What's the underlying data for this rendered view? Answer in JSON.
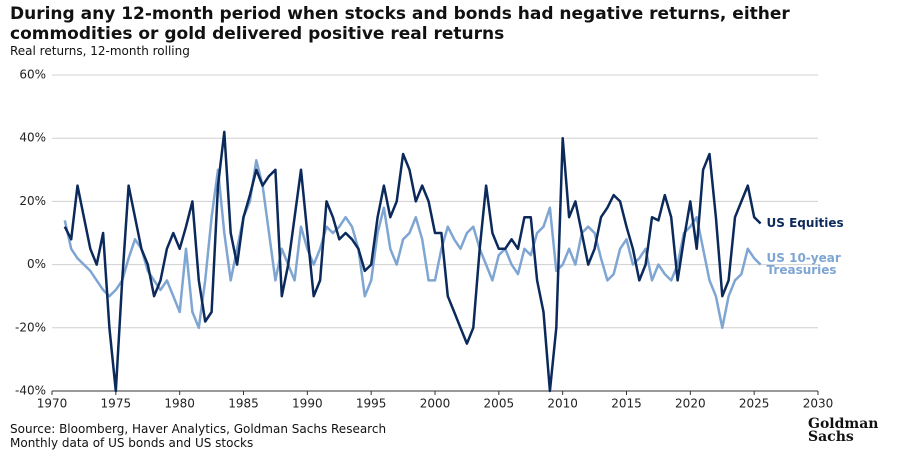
{
  "chart_data": {
    "type": "line",
    "title": "During any 12-month period when stocks and bonds had negative returns, either commodities or gold delivered positive real returns",
    "subtitle": "Real returns, 12-month rolling",
    "source": "Source: Bloomberg, Haver Analytics, Goldman Sachs Research",
    "note": "Monthly data of US bonds and US stocks",
    "logo": [
      "Goldman",
      "Sachs"
    ],
    "x": [
      1971,
      1971.5,
      1972,
      1972.5,
      1973,
      1973.5,
      1974,
      1974.5,
      1975,
      1975.5,
      1976,
      1976.5,
      1977,
      1977.5,
      1978,
      1978.5,
      1979,
      1979.5,
      1980,
      1980.5,
      1981,
      1981.5,
      1982,
      1982.5,
      1983,
      1983.5,
      1984,
      1984.5,
      1985,
      1985.5,
      1986,
      1986.5,
      1987,
      1987.5,
      1988,
      1988.5,
      1989,
      1989.5,
      1990,
      1990.5,
      1991,
      1991.5,
      1992,
      1992.5,
      1993,
      1993.5,
      1994,
      1994.5,
      1995,
      1995.5,
      1996,
      1996.5,
      1997,
      1997.5,
      1998,
      1998.5,
      1999,
      1999.5,
      2000,
      2000.5,
      2001,
      2001.5,
      2002,
      2002.5,
      2003,
      2003.5,
      2004,
      2004.5,
      2005,
      2005.5,
      2006,
      2006.5,
      2007,
      2007.5,
      2008,
      2008.5,
      2009,
      2009.5,
      2010,
      2010.5,
      2011,
      2011.5,
      2012,
      2012.5,
      2013,
      2013.5,
      2014,
      2014.5,
      2015,
      2015.5,
      2016,
      2016.5,
      2017,
      2017.5,
      2018,
      2018.5,
      2019,
      2019.5,
      2020,
      2020.5,
      2021,
      2021.5,
      2022,
      2022.5,
      2023,
      2023.5,
      2024,
      2024.5,
      2025,
      2025.5
    ],
    "series": [
      {
        "name": "US Equities",
        "color": "#0b2a5b",
        "values": [
          12,
          8,
          25,
          15,
          5,
          0,
          10,
          -20,
          -40,
          -5,
          25,
          15,
          5,
          0,
          -10,
          -5,
          5,
          10,
          5,
          12,
          20,
          -5,
          -18,
          -15,
          25,
          42,
          10,
          0,
          15,
          22,
          30,
          25,
          28,
          30,
          -10,
          0,
          15,
          30,
          10,
          -10,
          -5,
          20,
          15,
          8,
          10,
          8,
          5,
          -2,
          0,
          15,
          25,
          15,
          20,
          35,
          30,
          20,
          25,
          20,
          10,
          10,
          -10,
          -15,
          -20,
          -25,
          -20,
          5,
          25,
          10,
          5,
          5,
          8,
          5,
          15,
          15,
          -5,
          -15,
          -40,
          -20,
          40,
          15,
          20,
          10,
          0,
          5,
          15,
          18,
          22,
          20,
          12,
          5,
          -5,
          0,
          15,
          14,
          22,
          15,
          -5,
          8,
          20,
          5,
          30,
          35,
          15,
          -10,
          -5,
          15,
          20,
          25,
          15,
          13
        ]
      },
      {
        "name": "US 10-year Treasuries",
        "color": "#7fa5d3",
        "values": [
          14,
          5,
          2,
          0,
          -2,
          -5,
          -8,
          -10,
          -8,
          -5,
          2,
          8,
          5,
          -2,
          -5,
          -8,
          -5,
          -10,
          -15,
          5,
          -15,
          -20,
          -5,
          15,
          30,
          10,
          -5,
          5,
          15,
          20,
          33,
          25,
          10,
          -5,
          5,
          0,
          -5,
          12,
          5,
          0,
          5,
          12,
          10,
          12,
          15,
          12,
          5,
          -10,
          -5,
          10,
          18,
          5,
          0,
          8,
          10,
          15,
          8,
          -5,
          -5,
          5,
          12,
          8,
          5,
          10,
          12,
          5,
          0,
          -5,
          3,
          5,
          0,
          -3,
          5,
          3,
          10,
          12,
          18,
          -2,
          0,
          5,
          0,
          10,
          12,
          10,
          2,
          -5,
          -3,
          5,
          8,
          0,
          2,
          5,
          -5,
          0,
          -3,
          -5,
          0,
          10,
          12,
          15,
          5,
          -5,
          -10,
          -20,
          -10,
          -5,
          -3,
          5,
          2,
          0
        ]
      }
    ],
    "xlim": [
      1970,
      2030
    ],
    "xticks": [
      1970,
      1975,
      1980,
      1985,
      1990,
      1995,
      2000,
      2005,
      2010,
      2015,
      2020,
      2025,
      2030
    ],
    "ylim": [
      -40,
      60
    ],
    "yticks": [
      {
        "value": -40,
        "label": "-40%"
      },
      {
        "value": -20,
        "label": "-20%"
      },
      {
        "value": 0,
        "label": "0%"
      },
      {
        "value": 20,
        "label": "20%"
      },
      {
        "value": 40,
        "label": "40%"
      },
      {
        "value": 60,
        "label": "60%"
      }
    ],
    "grid": true
  }
}
